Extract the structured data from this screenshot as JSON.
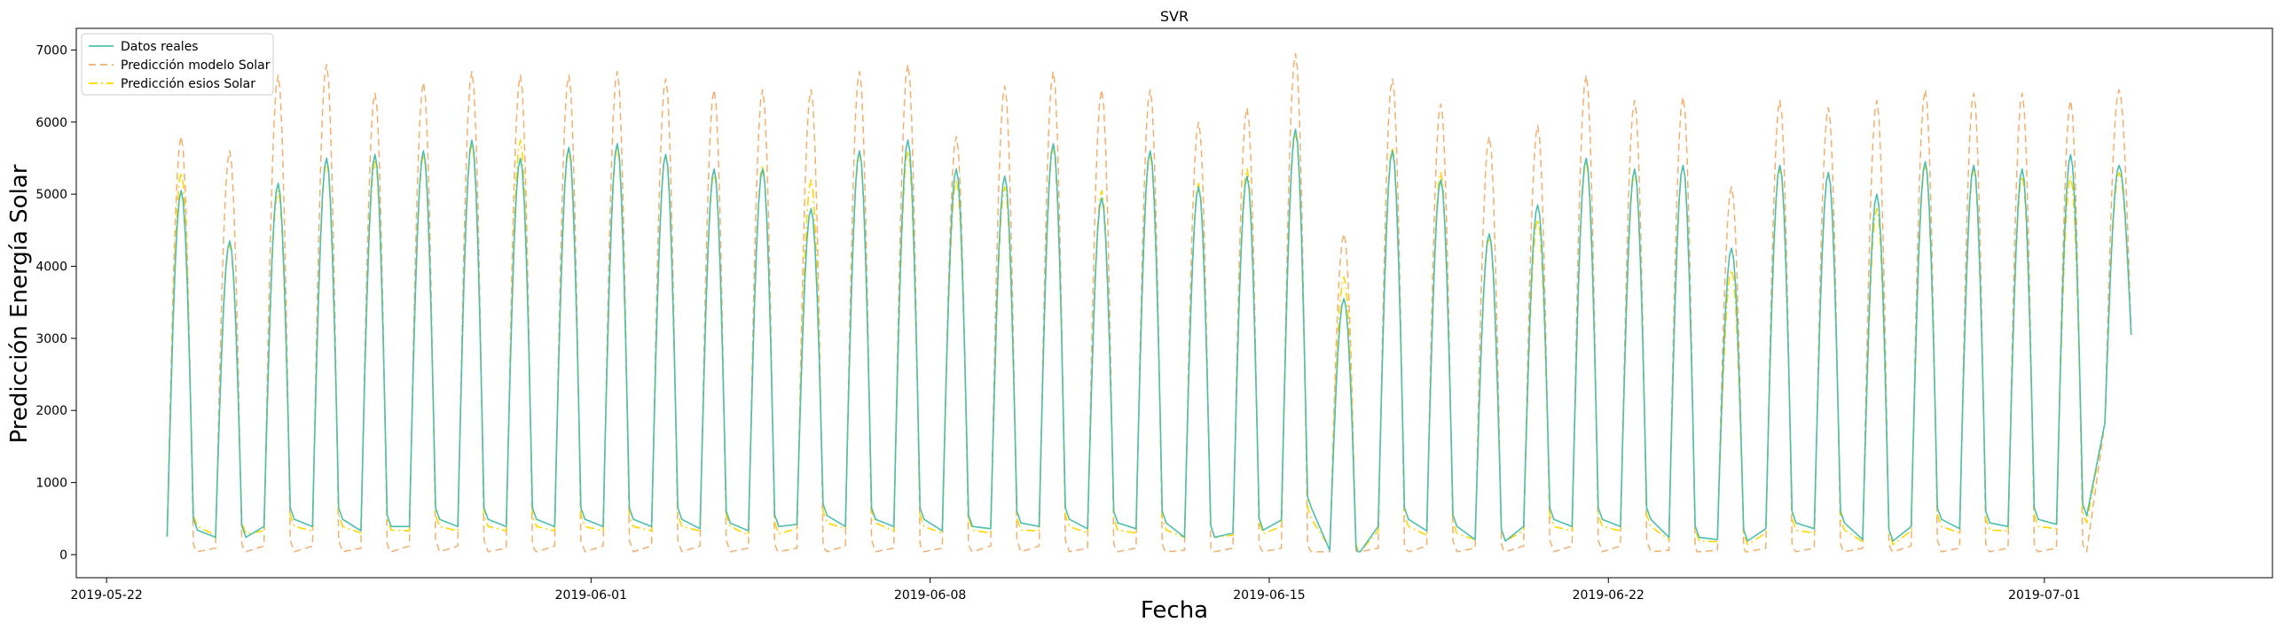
{
  "chart_data": {
    "type": "line",
    "title": "SVR",
    "xlabel": "Fecha",
    "ylabel": "Predicción Energía Solar",
    "xlim": [
      "2019-05-21T09:00",
      "2019-07-05T17:00"
    ],
    "ylim": [
      -320,
      7300
    ],
    "x_ticks": [
      "2019-05-22",
      "2019-06-01",
      "2019-06-08",
      "2019-06-15",
      "2019-06-22",
      "2019-07-01"
    ],
    "y_ticks": [
      0,
      1000,
      2000,
      3000,
      4000,
      5000,
      6000,
      7000
    ],
    "legend_position": "upper-left",
    "series_meta": [
      {
        "name": "Datos reales",
        "color": "#4dbfb0",
        "style": "solid"
      },
      {
        "name": "Predicción modelo Solar",
        "color": "#f0b070",
        "style": "dashed"
      },
      {
        "name": "Predicción esios Solar",
        "color": "#ffd700",
        "style": "dashdot"
      }
    ],
    "start_date": "2019-05-23",
    "days": [
      {
        "peak": [
          5050,
          5800,
          5300
        ],
        "low": [
          500,
          150,
          550
        ],
        "first": 250
      },
      {
        "peak": [
          4350,
          5600,
          4300
        ],
        "low": [
          400,
          150,
          450
        ]
      },
      {
        "peak": [
          5150,
          6650,
          5050
        ],
        "low": [
          650,
          200,
          550
        ]
      },
      {
        "peak": [
          5500,
          6800,
          5450
        ],
        "low": [
          650,
          200,
          550
        ]
      },
      {
        "peak": [
          5550,
          6400,
          5450
        ],
        "low": [
          550,
          150,
          500
        ]
      },
      {
        "peak": [
          5600,
          6550,
          5550
        ],
        "low": [
          650,
          200,
          550
        ]
      },
      {
        "peak": [
          5750,
          6700,
          5700
        ],
        "low": [
          650,
          200,
          550
        ]
      },
      {
        "peak": [
          5500,
          6650,
          5750
        ],
        "low": [
          650,
          150,
          550
        ]
      },
      {
        "peak": [
          5650,
          6650,
          5600
        ],
        "low": [
          650,
          200,
          550
        ]
      },
      {
        "peak": [
          5700,
          6700,
          5650
        ],
        "low": [
          650,
          200,
          550
        ]
      },
      {
        "peak": [
          5550,
          6600,
          5550
        ],
        "low": [
          650,
          200,
          550
        ]
      },
      {
        "peak": [
          5350,
          6450,
          5300
        ],
        "low": [
          600,
          200,
          550
        ]
      },
      {
        "peak": [
          5350,
          6450,
          5400
        ],
        "low": [
          550,
          150,
          450
        ]
      },
      {
        "peak": [
          4800,
          6450,
          5200
        ],
        "low": [
          700,
          150,
          600
        ]
      },
      {
        "peak": [
          5600,
          6700,
          5550
        ],
        "low": [
          650,
          200,
          600
        ]
      },
      {
        "peak": [
          5750,
          6800,
          5600
        ],
        "low": [
          650,
          150,
          550
        ]
      },
      {
        "peak": [
          5350,
          5800,
          5200
        ],
        "low": [
          550,
          150,
          500
        ]
      },
      {
        "peak": [
          5250,
          6500,
          5100
        ],
        "low": [
          600,
          200,
          500
        ]
      },
      {
        "peak": [
          5700,
          6700,
          5650
        ],
        "low": [
          650,
          200,
          550
        ]
      },
      {
        "peak": [
          4950,
          6450,
          5050
        ],
        "low": [
          600,
          150,
          500
        ]
      },
      {
        "peak": [
          5600,
          6450,
          5550
        ],
        "low": [
          600,
          150,
          500
        ]
      },
      {
        "peak": [
          5100,
          6000,
          5150
        ],
        "low": [
          400,
          100,
          400
        ]
      },
      {
        "peak": [
          5250,
          6200,
          5350
        ],
        "low": [
          500,
          150,
          450
        ]
      },
      {
        "peak": [
          5900,
          6950,
          5850
        ],
        "low": [
          800,
          150,
          650
        ]
      },
      {
        "peak": [
          3550,
          4450,
          3850
        ],
        "low": [
          100,
          50,
          150
        ]
      },
      {
        "peak": [
          5600,
          6600,
          5650
        ],
        "low": [
          650,
          150,
          550
        ]
      },
      {
        "peak": [
          5200,
          6250,
          5300
        ],
        "low": [
          550,
          200,
          450
        ]
      },
      {
        "peak": [
          4450,
          5800,
          4400
        ],
        "low": [
          350,
          150,
          350
        ]
      },
      {
        "peak": [
          4850,
          5950,
          4650
        ],
        "low": [
          650,
          200,
          550
        ]
      },
      {
        "peak": [
          5500,
          6650,
          5450
        ],
        "low": [
          650,
          200,
          550
        ]
      },
      {
        "peak": [
          5350,
          6300,
          5300
        ],
        "low": [
          650,
          200,
          550
        ]
      },
      {
        "peak": [
          5400,
          6350,
          5400
        ],
        "low": [
          400,
          100,
          350
        ]
      },
      {
        "peak": [
          4250,
          5100,
          3950
        ],
        "low": [
          350,
          100,
          300
        ]
      },
      {
        "peak": [
          5400,
          6300,
          5350
        ],
        "low": [
          600,
          150,
          500
        ]
      },
      {
        "peak": [
          5300,
          6200,
          5300
        ],
        "low": [
          600,
          150,
          500
        ]
      },
      {
        "peak": [
          5000,
          6300,
          4800
        ],
        "low": [
          350,
          150,
          300
        ]
      },
      {
        "peak": [
          5450,
          6450,
          5400
        ],
        "low": [
          650,
          200,
          550
        ]
      },
      {
        "peak": [
          5400,
          6400,
          5350
        ],
        "low": [
          600,
          150,
          500
        ]
      },
      {
        "peak": [
          5350,
          6400,
          5250
        ],
        "low": [
          650,
          150,
          550
        ]
      },
      {
        "peak": [
          5550,
          6300,
          5250
        ],
        "low": [
          700,
          150,
          600
        ]
      },
      {
        "peak": [
          5400,
          6450,
          5300
        ],
        "low": [
          3050,
          3050,
          3050
        ],
        "last": true
      }
    ]
  }
}
